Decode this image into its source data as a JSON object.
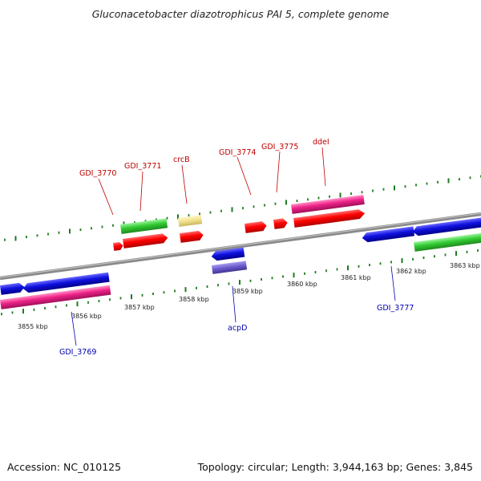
{
  "title": "Gluconacetobacter diazotrophicus PAI 5, complete genome",
  "footer": {
    "accession": "Accession: NC_010125",
    "summary": "Topology: circular; Length: 3,944,163 bp; Genes: 3,845"
  },
  "colors": {
    "backbone": "#8a8a8a",
    "tick": "#1f7a1f",
    "forward_label": "#c00000",
    "reverse_label": "#0000b0",
    "cds_red": "#ff0000",
    "cds_green": "#33cc33",
    "cds_pink": "#ee2288",
    "cds_blue": "#1010e0",
    "cds_yellow": "#f0e08a",
    "cds_purple": "#6a5acd"
  },
  "coordinates": {
    "unit": "kbp",
    "labels": [
      "3855 kbp",
      "3856 kbp",
      "3857 kbp",
      "3858 kbp",
      "3859 kbp",
      "3860 kbp",
      "3861 kbp",
      "3862 kbp",
      "3863 kbp"
    ]
  },
  "gene_labels": {
    "forward": [
      "GDI_3770",
      "GDI_3771",
      "crcB",
      "GDI_3774",
      "GDI_3775",
      "ddeI"
    ],
    "reverse": [
      "GDI_3769",
      "acpD",
      "GDI_3777"
    ]
  }
}
